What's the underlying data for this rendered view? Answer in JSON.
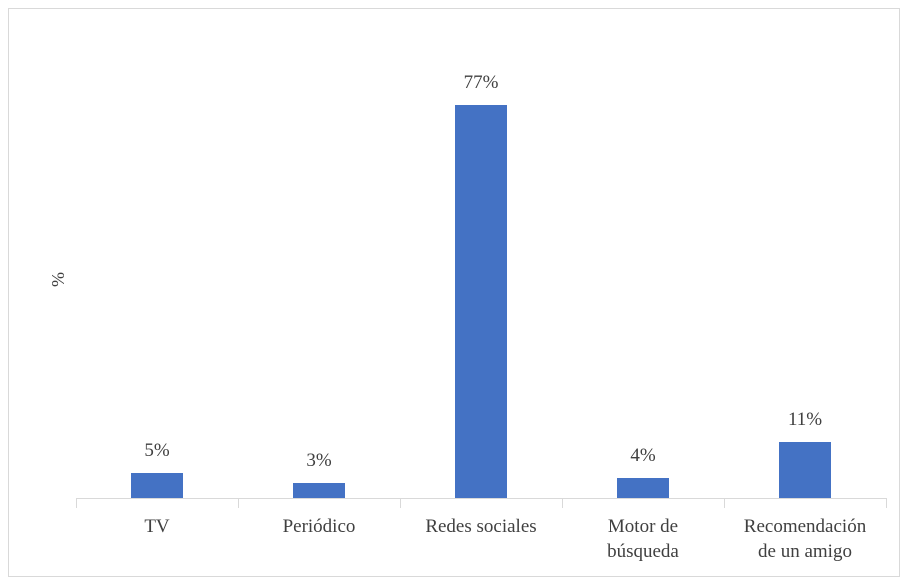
{
  "chart_data": {
    "type": "bar",
    "y_label": "%",
    "categories": [
      "TV",
      "Periódico",
      "Redes sociales",
      "Motor de búsqueda",
      "Recomendación de un amigo"
    ],
    "values": [
      5,
      3,
      77,
      4,
      11
    ],
    "value_labels": [
      "5%",
      "3%",
      "77%",
      "4%",
      "11%"
    ],
    "color": "#4472c4"
  }
}
